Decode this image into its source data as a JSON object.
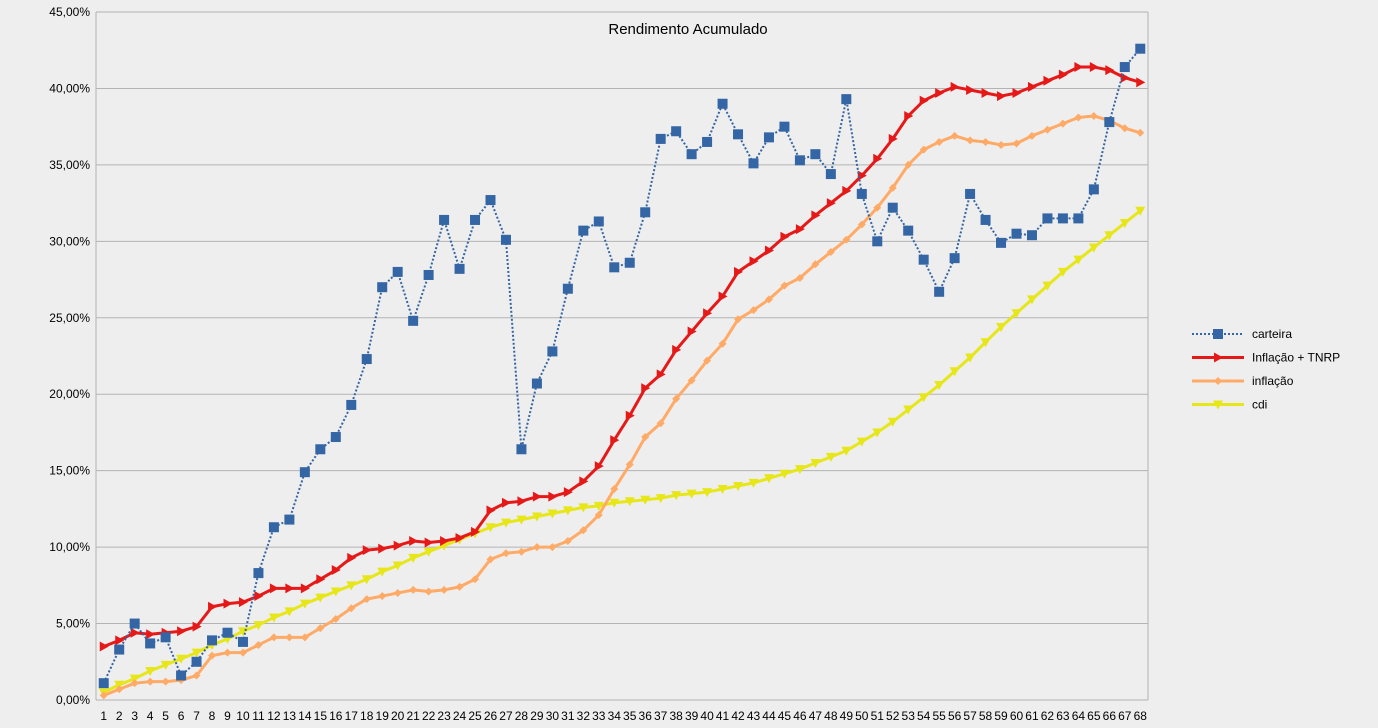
{
  "chart_data": {
    "type": "line",
    "title": "Rendimento Acumulado",
    "xlabel": "",
    "ylabel": "",
    "x": [
      1,
      2,
      3,
      4,
      5,
      6,
      7,
      8,
      9,
      10,
      11,
      12,
      13,
      14,
      15,
      16,
      17,
      18,
      19,
      20,
      21,
      22,
      23,
      24,
      25,
      26,
      27,
      28,
      29,
      30,
      31,
      32,
      33,
      34,
      35,
      36,
      37,
      38,
      39,
      40,
      41,
      42,
      43,
      44,
      45,
      46,
      47,
      48,
      49,
      50,
      51,
      52,
      53,
      54,
      55,
      56,
      57,
      58,
      59,
      60,
      61,
      62,
      63,
      64,
      65,
      66,
      67,
      68
    ],
    "ylim": [
      0,
      45
    ],
    "yticks": [
      0,
      5,
      10,
      15,
      20,
      25,
      30,
      35,
      40,
      45
    ],
    "ytick_labels": [
      "0,00%",
      "5,00%",
      "10,00%",
      "15,00%",
      "20,00%",
      "25,00%",
      "30,00%",
      "35,00%",
      "40,00%",
      "45,00%"
    ],
    "grid": "horizontal",
    "legend_position": "right",
    "series": [
      {
        "name": "carteira",
        "color": "#3465a4",
        "line_style": "dotted",
        "marker": "square",
        "values": [
          1.1,
          3.3,
          5.0,
          3.7,
          4.1,
          1.6,
          2.5,
          3.9,
          4.4,
          3.8,
          8.3,
          11.3,
          11.8,
          14.9,
          16.4,
          17.2,
          19.3,
          22.3,
          27.0,
          28.0,
          24.8,
          27.8,
          31.4,
          28.2,
          31.4,
          32.7,
          30.1,
          16.4,
          20.7,
          22.8,
          26.9,
          30.7,
          31.3,
          28.3,
          28.6,
          31.9,
          36.7,
          37.2,
          35.7,
          36.5,
          39.0,
          37.0,
          35.1,
          36.8,
          37.5,
          35.3,
          35.7,
          34.4,
          39.3,
          33.1,
          30.0,
          32.2,
          30.7,
          28.8,
          26.7,
          28.9,
          33.1,
          31.4,
          29.9,
          30.5,
          30.4,
          31.5,
          31.5,
          31.5,
          33.4,
          37.8,
          41.4,
          42.6
        ]
      },
      {
        "name": "Inflação + TNRP",
        "color": "#e61919",
        "line_style": "solid",
        "marker": "triangle-right",
        "values": [
          3.5,
          3.9,
          4.4,
          4.3,
          4.4,
          4.5,
          4.8,
          6.1,
          6.3,
          6.4,
          6.8,
          7.3,
          7.3,
          7.3,
          7.9,
          8.5,
          9.3,
          9.8,
          9.9,
          10.1,
          10.4,
          10.3,
          10.4,
          10.6,
          11.0,
          12.4,
          12.9,
          13.0,
          13.3,
          13.3,
          13.6,
          14.3,
          15.3,
          17.0,
          18.6,
          20.4,
          21.3,
          22.9,
          24.1,
          25.3,
          26.4,
          28.0,
          28.7,
          29.4,
          30.3,
          30.8,
          31.7,
          32.5,
          33.3,
          34.3,
          35.4,
          36.7,
          38.2,
          39.2,
          39.7,
          40.1,
          39.9,
          39.7,
          39.5,
          39.7,
          40.1,
          40.5,
          40.9,
          41.4,
          41.4,
          41.2,
          40.7,
          40.4
        ]
      },
      {
        "name": "inflação",
        "color": "#ffaa66",
        "line_style": "solid",
        "marker": "diamond",
        "values": [
          0.3,
          0.7,
          1.1,
          1.2,
          1.2,
          1.3,
          1.6,
          2.9,
          3.1,
          3.1,
          3.6,
          4.1,
          4.1,
          4.1,
          4.7,
          5.3,
          6.0,
          6.6,
          6.8,
          7.0,
          7.2,
          7.1,
          7.2,
          7.4,
          7.9,
          9.2,
          9.6,
          9.7,
          10.0,
          10.0,
          10.4,
          11.1,
          12.1,
          13.8,
          15.4,
          17.2,
          18.1,
          19.7,
          20.9,
          22.2,
          23.3,
          24.9,
          25.5,
          26.2,
          27.1,
          27.6,
          28.5,
          29.3,
          30.1,
          31.1,
          32.2,
          33.5,
          35.0,
          36.0,
          36.5,
          36.9,
          36.6,
          36.5,
          36.3,
          36.4,
          36.9,
          37.3,
          37.7,
          38.1,
          38.2,
          37.9,
          37.4,
          37.1
        ]
      },
      {
        "name": "cdi",
        "color": "#e6e619",
        "line_style": "solid",
        "marker": "triangle-down",
        "values": [
          0.5,
          1.0,
          1.4,
          1.9,
          2.3,
          2.7,
          3.1,
          3.6,
          4.0,
          4.5,
          4.9,
          5.4,
          5.8,
          6.3,
          6.7,
          7.1,
          7.5,
          7.9,
          8.4,
          8.8,
          9.3,
          9.7,
          10.1,
          10.5,
          10.9,
          11.3,
          11.6,
          11.8,
          12.0,
          12.2,
          12.4,
          12.6,
          12.7,
          12.9,
          13.0,
          13.1,
          13.2,
          13.4,
          13.5,
          13.6,
          13.8,
          14.0,
          14.2,
          14.5,
          14.8,
          15.1,
          15.5,
          15.9,
          16.3,
          16.9,
          17.5,
          18.2,
          19.0,
          19.8,
          20.6,
          21.5,
          22.4,
          23.4,
          24.4,
          25.3,
          26.2,
          27.1,
          28.0,
          28.8,
          29.6,
          30.4,
          31.2,
          32.0
        ]
      }
    ]
  }
}
